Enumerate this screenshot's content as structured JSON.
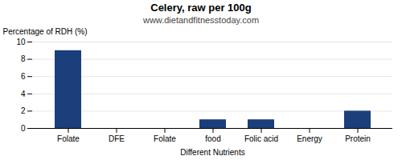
{
  "chart_data": {
    "type": "bar",
    "title": "Celery, raw per 100g",
    "subtitle": "www.dietandfitnesstoday.com",
    "xlabel": "Different Nutrients",
    "ylabel": "Percentage of RDH (%)",
    "categories": [
      "Folate",
      "DFE",
      "Folate",
      "food",
      "Folic acid",
      "Energy",
      "Protein"
    ],
    "values": [
      9.0,
      0.0,
      0.0,
      1.0,
      1.0,
      0.0,
      2.0
    ],
    "color": "#1a3f7a",
    "ylim": [
      0,
      10
    ],
    "yticks": [
      0,
      2,
      4,
      6,
      8,
      10
    ],
    "grid": true
  }
}
